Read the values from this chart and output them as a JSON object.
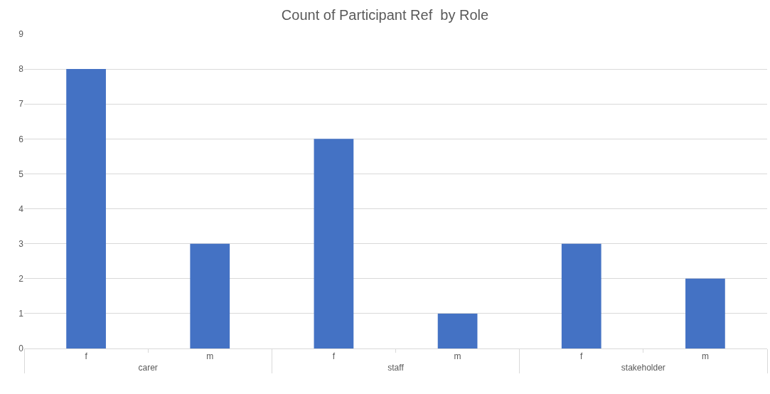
{
  "chart_data": {
    "type": "bar",
    "title": "Count of Participant Ref  by Role",
    "categories": [
      "f",
      "m",
      "f",
      "m",
      "f",
      "m"
    ],
    "values": [
      8,
      3,
      6,
      1,
      3,
      2
    ],
    "color": "#4472c4",
    "annotations": [
      "carer",
      "staff",
      "stakeholder"
    ],
    "ylim": [
      0,
      9
    ],
    "yticks": [
      0,
      1,
      2,
      3,
      4,
      5,
      6,
      7,
      8,
      9
    ],
    "grid": "y",
    "legend": false
  }
}
